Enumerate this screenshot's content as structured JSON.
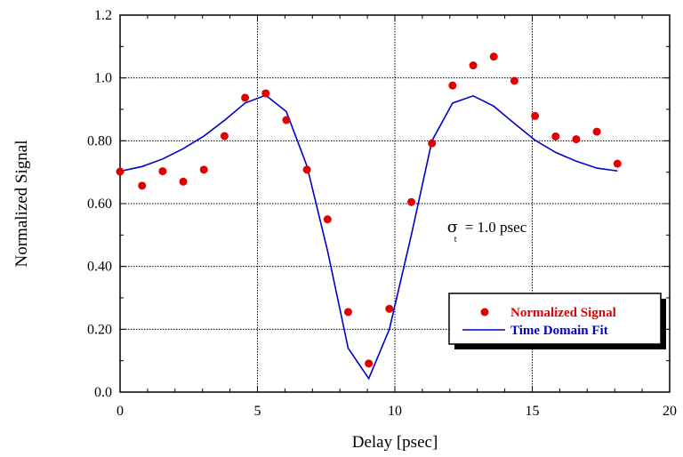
{
  "chart_data": {
    "type": "line",
    "title": "",
    "xlabel": "Delay [psec]",
    "ylabel": "Normalized Signal",
    "xlim": [
      0,
      20
    ],
    "ylim": [
      0,
      1.2
    ],
    "grid": true,
    "legend_position": "bottom-right",
    "x_ticks": [
      {
        "value": 0,
        "label": "0"
      },
      {
        "value": 5,
        "label": "5"
      },
      {
        "value": 10,
        "label": "10"
      },
      {
        "value": 15,
        "label": "15"
      },
      {
        "value": 20,
        "label": "20"
      }
    ],
    "y_ticks": [
      {
        "value": 0,
        "label": "0.0"
      },
      {
        "value": 0.2,
        "label": "0.20"
      },
      {
        "value": 0.4,
        "label": "0.40"
      },
      {
        "value": 0.6,
        "label": "0.60"
      },
      {
        "value": 0.8,
        "label": "0.80"
      },
      {
        "value": 1.0,
        "label": "1.0"
      },
      {
        "value": 1.2,
        "label": "1.2"
      }
    ],
    "series": [
      {
        "name": "Normalized Signal",
        "kind": "scatter",
        "color": "#e00000",
        "x": [
          0.0,
          0.8,
          1.55,
          2.3,
          3.05,
          3.8,
          4.55,
          5.3,
          6.05,
          6.8,
          7.55,
          8.3,
          9.05,
          9.8,
          10.6,
          11.35,
          12.1,
          12.85,
          13.6,
          14.35,
          15.1,
          15.85,
          16.6,
          17.35,
          18.1
        ],
        "y": [
          0.702,
          0.657,
          0.703,
          0.67,
          0.708,
          0.815,
          0.937,
          0.951,
          0.866,
          0.708,
          0.55,
          0.255,
          0.091,
          0.265,
          0.605,
          0.792,
          0.976,
          1.04,
          1.068,
          0.991,
          0.879,
          0.814,
          0.805,
          0.829,
          0.727
        ]
      },
      {
        "name": "Time Domain Fit",
        "kind": "line",
        "color": "#0000c8",
        "x": [
          0.0,
          0.8,
          1.55,
          2.3,
          3.05,
          3.8,
          4.55,
          5.3,
          6.05,
          6.8,
          7.55,
          8.3,
          9.05,
          9.8,
          10.6,
          11.35,
          12.1,
          12.85,
          13.6,
          14.35,
          15.1,
          15.85,
          16.6,
          17.35,
          18.1
        ],
        "y": [
          0.703,
          0.718,
          0.742,
          0.775,
          0.815,
          0.865,
          0.92,
          0.945,
          0.893,
          0.72,
          0.45,
          0.14,
          0.043,
          0.2,
          0.5,
          0.8,
          0.92,
          0.943,
          0.91,
          0.855,
          0.802,
          0.763,
          0.735,
          0.713,
          0.704
        ]
      }
    ],
    "annotation": {
      "symbol": "σ",
      "subscript": "t",
      "text": "= 1.0 psec",
      "x": 11.9,
      "y": 0.51
    }
  }
}
